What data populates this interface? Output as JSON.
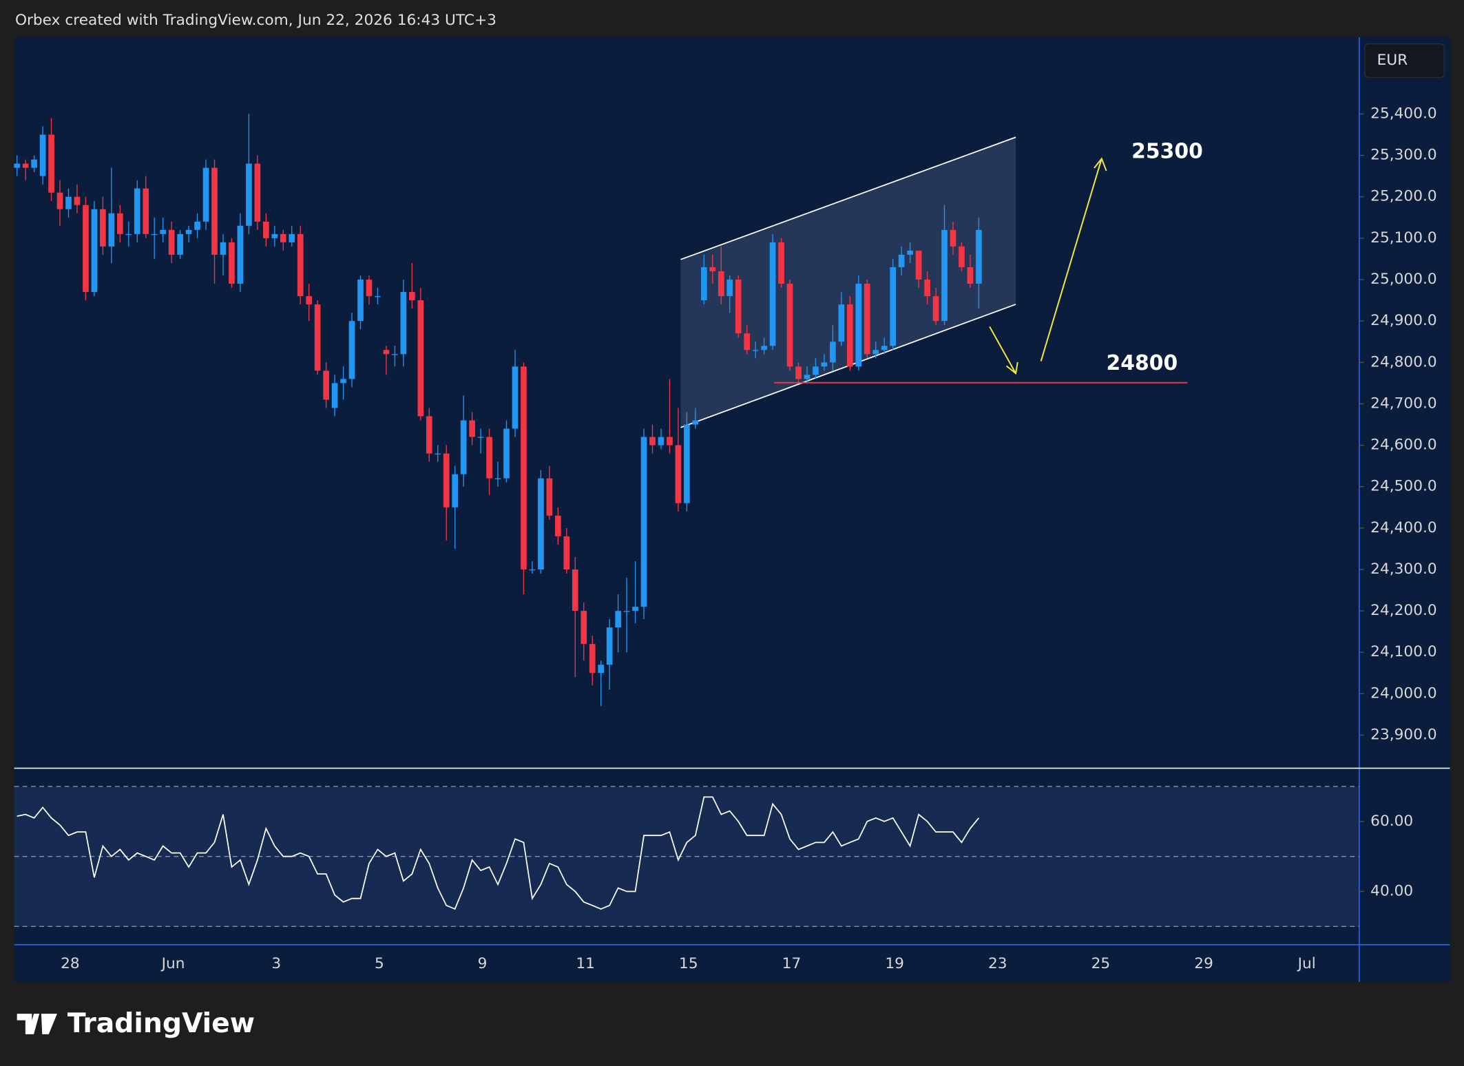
{
  "header": {
    "text": "Orbex created with TradingView.com, Jun 22, 2026 16:43 UTC+3"
  },
  "logo": {
    "text": "TradingView"
  },
  "chart_data": {
    "type": "candlestick",
    "currency": "EUR",
    "up_color": "#2196f3",
    "down_color": "#f23645",
    "ylim": [
      23820,
      25585
    ],
    "yticks": [
      {
        "value": 25400,
        "label": "25,400.0"
      },
      {
        "value": 25300,
        "label": "25,300.0"
      },
      {
        "value": 25200,
        "label": "25,200.0"
      },
      {
        "value": 25100,
        "label": "25,100.0"
      },
      {
        "value": 25000,
        "label": "25,000.0"
      },
      {
        "value": 24900,
        "label": "24,900.0"
      },
      {
        "value": 24800,
        "label": "24,800.0"
      },
      {
        "value": 24700,
        "label": "24,700.0"
      },
      {
        "value": 24600,
        "label": "24,600.0"
      },
      {
        "value": 24500,
        "label": "24,500.0"
      },
      {
        "value": 24400,
        "label": "24,400.0"
      },
      {
        "value": 24300,
        "label": "24,300.0"
      },
      {
        "value": 24200,
        "label": "24,200.0"
      },
      {
        "value": 24100,
        "label": "24,100.0"
      },
      {
        "value": 24000,
        "label": "24,000.0"
      },
      {
        "value": 23900,
        "label": "23,900.0"
      }
    ],
    "x_labels": [
      "28",
      "Jun",
      "3",
      "5",
      "9",
      "11",
      "15",
      "17",
      "19",
      "23",
      "25",
      "29",
      "Jul"
    ],
    "annotations": [
      "25300",
      "24800"
    ],
    "candles": [
      [
        25270,
        25300,
        25250,
        25280
      ],
      [
        25280,
        25290,
        25240,
        25270
      ],
      [
        25270,
        25300,
        25260,
        25290
      ],
      [
        25250,
        25370,
        25230,
        25350
      ],
      [
        25350,
        25390,
        25190,
        25210
      ],
      [
        25210,
        25240,
        25130,
        25170
      ],
      [
        25170,
        25220,
        25150,
        25200
      ],
      [
        25200,
        25230,
        25160,
        25180
      ],
      [
        25180,
        25200,
        24950,
        24970
      ],
      [
        24970,
        25190,
        24960,
        25170
      ],
      [
        25170,
        25200,
        25060,
        25080
      ],
      [
        25080,
        25270,
        25040,
        25160
      ],
      [
        25160,
        25180,
        25090,
        25110
      ],
      [
        25110,
        25140,
        25080,
        25110
      ],
      [
        25110,
        25240,
        25090,
        25220
      ],
      [
        25220,
        25250,
        25100,
        25110
      ],
      [
        25110,
        25150,
        25050,
        25110
      ],
      [
        25110,
        25150,
        25090,
        25120
      ],
      [
        25120,
        25140,
        25040,
        25060
      ],
      [
        25060,
        25120,
        25050,
        25110
      ],
      [
        25110,
        25130,
        25090,
        25120
      ],
      [
        25120,
        25160,
        25100,
        25140
      ],
      [
        25140,
        25290,
        25120,
        25270
      ],
      [
        25270,
        25290,
        24990,
        25060
      ],
      [
        25060,
        25110,
        25010,
        25090
      ],
      [
        25090,
        25100,
        24980,
        24990
      ],
      [
        24990,
        25160,
        24970,
        25130
      ],
      [
        25130,
        25400,
        25110,
        25280
      ],
      [
        25280,
        25300,
        25120,
        25140
      ],
      [
        25140,
        25160,
        25080,
        25100
      ],
      [
        25100,
        25130,
        25080,
        25110
      ],
      [
        25110,
        25120,
        25070,
        25090
      ],
      [
        25090,
        25130,
        25080,
        25110
      ],
      [
        25110,
        25130,
        24940,
        24960
      ],
      [
        24960,
        24990,
        24900,
        24940
      ],
      [
        24940,
        24950,
        24770,
        24780
      ],
      [
        24780,
        24800,
        24690,
        24710
      ],
      [
        24690,
        24770,
        24670,
        24750
      ],
      [
        24750,
        24790,
        24710,
        24760
      ],
      [
        24760,
        24920,
        24740,
        24900
      ],
      [
        24900,
        25010,
        24880,
        25000
      ],
      [
        25000,
        25010,
        24940,
        24960
      ],
      [
        24960,
        24980,
        24940,
        24960
      ],
      [
        24830,
        24840,
        24770,
        24820
      ],
      [
        24820,
        24840,
        24790,
        24820
      ],
      [
        24820,
        25000,
        24790,
        24970
      ],
      [
        24970,
        25040,
        24930,
        24950
      ],
      [
        24950,
        24980,
        24660,
        24670
      ],
      [
        24670,
        24690,
        24560,
        24580
      ],
      [
        24580,
        24600,
        24560,
        24580
      ],
      [
        24580,
        24600,
        24370,
        24450
      ],
      [
        24450,
        24550,
        24350,
        24530
      ],
      [
        24530,
        24720,
        24500,
        24660
      ],
      [
        24660,
        24680,
        24600,
        24620
      ],
      [
        24620,
        24640,
        24580,
        24620
      ],
      [
        24620,
        24640,
        24480,
        24520
      ],
      [
        24520,
        24560,
        24500,
        24520
      ],
      [
        24520,
        24660,
        24510,
        24640
      ],
      [
        24640,
        24830,
        24620,
        24790
      ],
      [
        24790,
        24800,
        24240,
        24300
      ],
      [
        24300,
        24320,
        24290,
        24300
      ],
      [
        24300,
        24540,
        24290,
        24520
      ],
      [
        24520,
        24550,
        24420,
        24430
      ],
      [
        24430,
        24450,
        24360,
        24380
      ],
      [
        24380,
        24400,
        24290,
        24300
      ],
      [
        24300,
        24330,
        24040,
        24200
      ],
      [
        24200,
        24220,
        24080,
        24120
      ],
      [
        24120,
        24140,
        24020,
        24050
      ],
      [
        24050,
        24080,
        23970,
        24070
      ],
      [
        24070,
        24180,
        24010,
        24160
      ],
      [
        24160,
        24240,
        24100,
        24200
      ],
      [
        24200,
        24280,
        24100,
        24200
      ],
      [
        24200,
        24320,
        24170,
        24210
      ],
      [
        24210,
        24640,
        24180,
        24620
      ],
      [
        24620,
        24650,
        24580,
        24600
      ],
      [
        24600,
        24640,
        24590,
        24620
      ],
      [
        24620,
        24760,
        24580,
        24600
      ],
      [
        24600,
        24690,
        24440,
        24460
      ],
      [
        24460,
        24680,
        24440,
        24650
      ],
      [
        24650,
        24690,
        24640,
        24660
      ],
      [
        24950,
        25060,
        24940,
        25030
      ],
      [
        25030,
        25060,
        24990,
        25020
      ],
      [
        25020,
        25080,
        24940,
        24960
      ],
      [
        24960,
        25010,
        24920,
        25000
      ],
      [
        25000,
        25010,
        24860,
        24870
      ],
      [
        24870,
        24890,
        24820,
        24830
      ],
      [
        24830,
        24850,
        24810,
        24830
      ],
      [
        24830,
        24860,
        24820,
        24840
      ],
      [
        24840,
        25110,
        24830,
        25090
      ],
      [
        25090,
        25100,
        24980,
        24990
      ],
      [
        24990,
        25000,
        24780,
        24790
      ],
      [
        24790,
        24800,
        24750,
        24760
      ],
      [
        24760,
        24790,
        24750,
        24770
      ],
      [
        24770,
        24810,
        24760,
        24790
      ],
      [
        24790,
        24820,
        24780,
        24800
      ],
      [
        24800,
        24890,
        24780,
        24850
      ],
      [
        24850,
        24970,
        24840,
        24940
      ],
      [
        24940,
        24960,
        24780,
        24790
      ],
      [
        24790,
        25010,
        24780,
        24990
      ],
      [
        24990,
        25000,
        24810,
        24820
      ],
      [
        24820,
        24850,
        24810,
        24830
      ],
      [
        24830,
        24860,
        24820,
        24840
      ],
      [
        24840,
        25050,
        24830,
        25030
      ],
      [
        25030,
        25080,
        25010,
        25060
      ],
      [
        25060,
        25090,
        25040,
        25070
      ],
      [
        25070,
        25070,
        24980,
        25000
      ],
      [
        25000,
        25020,
        24940,
        24960
      ],
      [
        24960,
        24980,
        24890,
        24900
      ],
      [
        24900,
        25180,
        24890,
        25120
      ],
      [
        25120,
        25140,
        25060,
        25080
      ],
      [
        25080,
        25090,
        25020,
        25030
      ],
      [
        25030,
        25060,
        24980,
        24990
      ],
      [
        24990,
        25150,
        24930,
        25120
      ]
    ],
    "rsi": {
      "ylim": [
        24.8,
        75.2
      ],
      "yticks": [
        {
          "value": 60,
          "label": "60.00"
        },
        {
          "value": 40,
          "label": "40.00"
        }
      ],
      "levels": [
        70,
        50,
        30
      ],
      "color": "#ffffff",
      "values": [
        61.5,
        62,
        61,
        64,
        61,
        59,
        56,
        57,
        57,
        44,
        53,
        50,
        52,
        49,
        51,
        50,
        49,
        53,
        51,
        51,
        47,
        51,
        51,
        54,
        62,
        47,
        49,
        42,
        49,
        58,
        53,
        50,
        50,
        51,
        50,
        45,
        45,
        39,
        37,
        38,
        38,
        48,
        52,
        50,
        51,
        43,
        45,
        52,
        48,
        41,
        36,
        35,
        41,
        49,
        46,
        47,
        42,
        48,
        55,
        54,
        38,
        42,
        48,
        47,
        42,
        40,
        37,
        36,
        35,
        36,
        41,
        40,
        40,
        56,
        56,
        56,
        57,
        49,
        54,
        56,
        67,
        67,
        62,
        63,
        60,
        56,
        56,
        56,
        65,
        62,
        55,
        52,
        53,
        54,
        54,
        57,
        53,
        54,
        55,
        60,
        61,
        60,
        61,
        57,
        53,
        62,
        60,
        57,
        57,
        57,
        54,
        58,
        61
      ]
    }
  }
}
